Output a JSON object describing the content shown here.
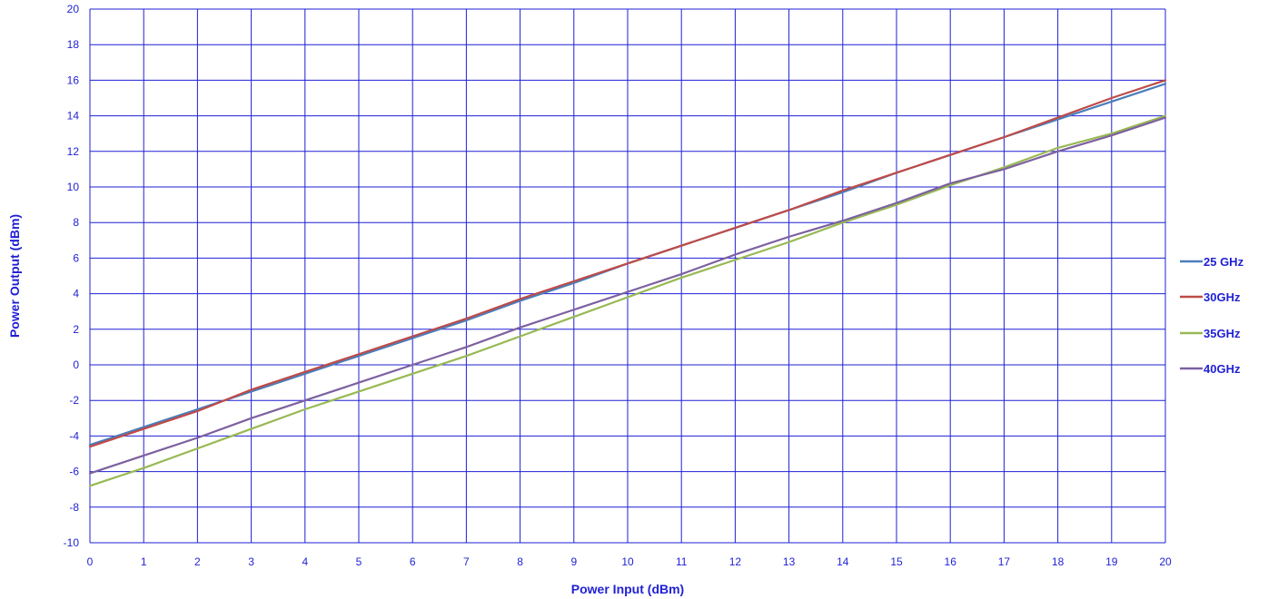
{
  "chart_data": {
    "type": "line",
    "title": "",
    "xlabel": "Power Input (dBm)",
    "ylabel": "Power Output  (dBm)",
    "xlim": [
      0,
      20
    ],
    "ylim": [
      -10,
      20
    ],
    "xticks": [
      "0",
      "1",
      "2",
      "3",
      "4",
      "5",
      "6",
      "7",
      "8",
      "9",
      "10",
      "11",
      "12",
      "13",
      "14",
      "15",
      "16",
      "17",
      "18",
      "19",
      "20"
    ],
    "yticks": [
      "-10",
      "-8",
      "-6",
      "-4",
      "-2",
      "0",
      "2",
      "4",
      "6",
      "8",
      "10",
      "12",
      "14",
      "16",
      "18",
      "20"
    ],
    "grid": true,
    "legend_position": "right",
    "x": [
      0,
      1,
      2,
      3,
      4,
      5,
      6,
      7,
      8,
      9,
      10,
      11,
      12,
      13,
      14,
      15,
      16,
      17,
      18,
      19,
      20
    ],
    "series": [
      {
        "name": "25 GHz",
        "color": "#4a7ebb",
        "values": [
          -4.5,
          -3.5,
          -2.5,
          -1.5,
          -0.5,
          0.5,
          1.5,
          2.5,
          3.6,
          4.6,
          5.7,
          6.7,
          7.7,
          8.7,
          9.7,
          10.8,
          11.8,
          12.8,
          13.8,
          14.8,
          15.8
        ]
      },
      {
        "name": "30GHz",
        "color": "#be4b48",
        "values": [
          -4.6,
          -3.6,
          -2.6,
          -1.4,
          -0.4,
          0.6,
          1.6,
          2.6,
          3.7,
          4.7,
          5.7,
          6.7,
          7.7,
          8.7,
          9.8,
          10.8,
          11.8,
          12.8,
          13.9,
          15.0,
          16.0
        ]
      },
      {
        "name": "35GHz",
        "color": "#98b954",
        "values": [
          -6.8,
          -5.8,
          -4.7,
          -3.6,
          -2.5,
          -1.5,
          -0.5,
          0.5,
          1.6,
          2.7,
          3.8,
          4.9,
          5.9,
          6.9,
          8.0,
          9.0,
          10.1,
          11.1,
          12.2,
          13.0,
          14.0
        ]
      },
      {
        "name": "40GHz",
        "color": "#7d60a0",
        "values": [
          -6.1,
          -5.1,
          -4.1,
          -3.0,
          -2.0,
          -1.0,
          0.0,
          1.0,
          2.1,
          3.1,
          4.1,
          5.1,
          6.2,
          7.2,
          8.1,
          9.1,
          10.2,
          11.0,
          12.0,
          12.9,
          13.9
        ]
      }
    ]
  }
}
